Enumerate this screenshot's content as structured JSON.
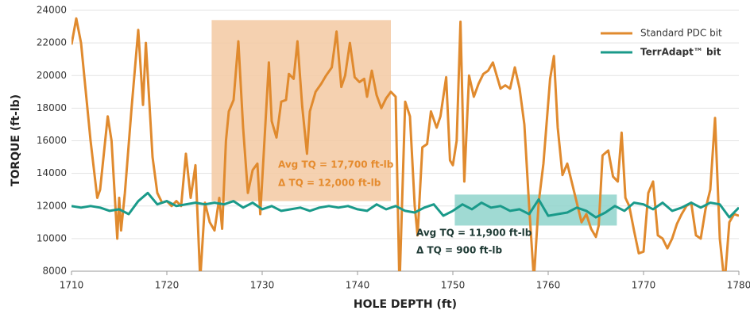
{
  "chart_data": {
    "type": "line",
    "x_label": "HOLE DEPTH (ft)",
    "y_label": "TORQUE (ft-lb)",
    "xlim": [
      1710,
      1780
    ],
    "xticks": [
      1710,
      1720,
      1730,
      1740,
      1750,
      1760,
      1770,
      1780
    ],
    "ylim": [
      8000,
      24000
    ],
    "yticks": [
      8000,
      10000,
      12000,
      14000,
      16000,
      18000,
      20000,
      22000,
      24000
    ],
    "grid": true,
    "legend_position": "upper right",
    "highlights": [
      {
        "x": [
          1724.7,
          1743.5
        ],
        "y": [
          12300,
          23400
        ],
        "color": "#f3c9a2"
      },
      {
        "x": [
          1750.2,
          1767.2
        ],
        "y": [
          10800,
          12700
        ],
        "color": "#8fd3cb"
      }
    ],
    "annotations": [
      {
        "text": "Avg TQ = 17,700 ft-lb",
        "color": "#e58b2e"
      },
      {
        "text": "Δ TQ = 12,000 ft-lb",
        "color": "#e58b2e"
      },
      {
        "text": "Avg TQ = 11,900 ft-lb",
        "color": "#1e3a34"
      },
      {
        "text": "Δ TQ = 900 ft-lb",
        "color": "#1e3a34"
      }
    ],
    "series": [
      {
        "name": "Standard PDC bit",
        "color": "#e08a2e",
        "x": [
          1710,
          1710.5,
          1711,
          1712,
          1712.7,
          1713,
          1713.8,
          1714.2,
          1714.8,
          1715,
          1715.2,
          1715.6,
          1716.3,
          1717,
          1717.5,
          1717.8,
          1718.5,
          1719,
          1719.5,
          1720,
          1720.5,
          1721,
          1721.5,
          1722,
          1722.5,
          1723,
          1723.5,
          1724,
          1724.5,
          1725,
          1725.5,
          1725.8,
          1726.2,
          1726.5,
          1727,
          1727.5,
          1728,
          1728.5,
          1729,
          1729.5,
          1729.8,
          1730.2,
          1730.7,
          1731,
          1731.5,
          1732,
          1732.5,
          1732.8,
          1733.3,
          1733.7,
          1734.2,
          1734.7,
          1735,
          1735.6,
          1736.2,
          1736.7,
          1737.3,
          1737.8,
          1738.3,
          1738.7,
          1739.2,
          1739.7,
          1740.2,
          1740.7,
          1741,
          1741.5,
          1742,
          1742.5,
          1743,
          1743.5,
          1744,
          1744.4,
          1745,
          1745.5,
          1746,
          1746.3,
          1746.8,
          1747.3,
          1747.7,
          1748.3,
          1748.7,
          1749.3,
          1749.7,
          1750,
          1750.4,
          1750.8,
          1751.2,
          1751.7,
          1752.2,
          1752.7,
          1753.2,
          1753.7,
          1754.2,
          1754.6,
          1755,
          1755.5,
          1756,
          1756.5,
          1757,
          1757.5,
          1758,
          1758.5,
          1759,
          1759.5,
          1760.2,
          1760.6,
          1761,
          1761.5,
          1762,
          1762.5,
          1763,
          1763.5,
          1764,
          1764.5,
          1765,
          1765.3,
          1765.7,
          1766.3,
          1766.8,
          1767.3,
          1767.7,
          1768.1,
          1768.5,
          1769,
          1769.5,
          1770,
          1770.5,
          1771,
          1771.5,
          1772,
          1772.5,
          1773,
          1773.5,
          1774,
          1774.5,
          1775,
          1775.5,
          1776,
          1776.5,
          1777,
          1777.5,
          1778,
          1778.5,
          1779,
          1779.5,
          1780
        ],
        "values": [
          21900,
          23500,
          22000,
          16000,
          12500,
          13000,
          17500,
          16000,
          10000,
          12500,
          10500,
          12800,
          18000,
          22800,
          18200,
          22000,
          15000,
          12800,
          12200,
          12300,
          12000,
          12300,
          12000,
          15200,
          12500,
          14500,
          7500,
          12200,
          11000,
          10500,
          12500,
          10600,
          16000,
          17800,
          18500,
          22100,
          16800,
          12800,
          14200,
          14600,
          11500,
          15600,
          20800,
          17200,
          16200,
          18400,
          18500,
          20100,
          19800,
          22100,
          18100,
          15200,
          17800,
          19000,
          19500,
          20000,
          20500,
          22700,
          19300,
          20000,
          22000,
          19900,
          19600,
          19800,
          18700,
          20300,
          18800,
          18000,
          18600,
          19000,
          18700,
          7000,
          18400,
          17500,
          12000,
          10200,
          15600,
          15800,
          17800,
          16800,
          17500,
          19900,
          14800,
          14500,
          16000,
          23300,
          13500,
          20000,
          18700,
          19500,
          20100,
          20300,
          20800,
          20000,
          19200,
          19400,
          19200,
          20500,
          19200,
          17000,
          12000,
          7500,
          12200,
          14600,
          19800,
          21200,
          16800,
          13900,
          14600,
          13400,
          12200,
          11000,
          11500,
          10600,
          10100,
          10800,
          15100,
          15400,
          13800,
          13500,
          16500,
          12500,
          12000,
          10500,
          9100,
          9200,
          12800,
          13500,
          10200,
          10000,
          9400,
          10000,
          10900,
          11500,
          12000,
          12200,
          10200,
          10000,
          11800,
          13000,
          17400,
          10000,
          7200,
          11000,
          11500,
          11400
        ]
      },
      {
        "name": "TerrAdapt™ bit",
        "color": "#1a9a8a",
        "x": [
          1710,
          1711,
          1712,
          1713,
          1714,
          1715,
          1716,
          1717,
          1718,
          1719,
          1720,
          1721,
          1722,
          1723,
          1724,
          1725,
          1726,
          1727,
          1728,
          1729,
          1730,
          1731,
          1732,
          1733,
          1734,
          1735,
          1736,
          1737,
          1738,
          1739,
          1740,
          1741,
          1742,
          1743,
          1744,
          1745,
          1746,
          1747,
          1748,
          1749,
          1750,
          1751,
          1752,
          1753,
          1754,
          1755,
          1756,
          1757,
          1758,
          1759,
          1760,
          1761,
          1762,
          1763,
          1764,
          1765,
          1766,
          1767,
          1768,
          1769,
          1770,
          1771,
          1772,
          1773,
          1774,
          1775,
          1776,
          1777,
          1778,
          1779,
          1780
        ],
        "values": [
          12000,
          11900,
          12000,
          11900,
          11700,
          11800,
          11500,
          12300,
          12800,
          12100,
          12300,
          12000,
          12100,
          12200,
          12100,
          12200,
          12100,
          12300,
          11900,
          12200,
          11800,
          12000,
          11700,
          11800,
          11900,
          11700,
          11900,
          12000,
          11900,
          12000,
          11800,
          11700,
          12100,
          11800,
          12000,
          11700,
          11600,
          11900,
          12100,
          11400,
          11700,
          12100,
          11800,
          12200,
          11900,
          12000,
          11700,
          11800,
          11500,
          12400,
          11400,
          11500,
          11600,
          11900,
          11700,
          11300,
          11600,
          12000,
          11700,
          12200,
          12100,
          11800,
          12200,
          11700,
          11900,
          12200,
          11900,
          12200,
          12100,
          11300,
          11900
        ]
      }
    ]
  }
}
